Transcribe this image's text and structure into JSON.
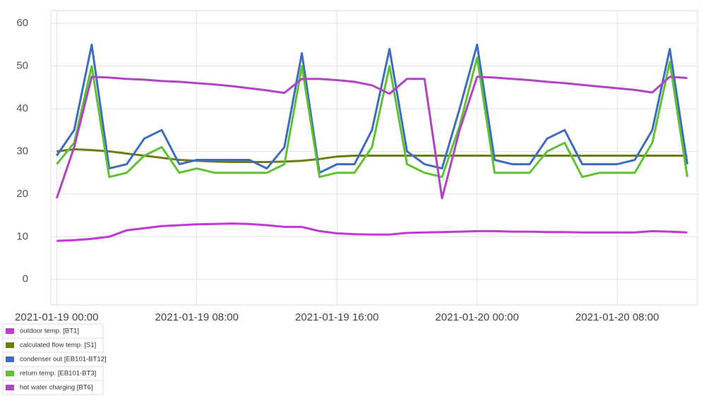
{
  "chart_data": {
    "type": "line",
    "x": [
      "2021-01-19 00:00",
      "2021-01-19 01:00",
      "2021-01-19 02:00",
      "2021-01-19 03:00",
      "2021-01-19 04:00",
      "2021-01-19 05:00",
      "2021-01-19 06:00",
      "2021-01-19 07:00",
      "2021-01-19 08:00",
      "2021-01-19 09:00",
      "2021-01-19 10:00",
      "2021-01-19 11:00",
      "2021-01-19 12:00",
      "2021-01-19 13:00",
      "2021-01-19 14:00",
      "2021-01-19 15:00",
      "2021-01-19 16:00",
      "2021-01-19 17:00",
      "2021-01-19 18:00",
      "2021-01-19 19:00",
      "2021-01-19 20:00",
      "2021-01-19 21:00",
      "2021-01-19 22:00",
      "2021-01-19 23:00",
      "2021-01-20 00:00",
      "2021-01-20 01:00",
      "2021-01-20 02:00",
      "2021-01-20 03:00",
      "2021-01-20 04:00",
      "2021-01-20 05:00",
      "2021-01-20 06:00",
      "2021-01-20 07:00",
      "2021-01-20 08:00",
      "2021-01-20 09:00",
      "2021-01-20 10:00",
      "2021-01-20 11:00",
      "2021-01-20 12:00"
    ],
    "series": [
      {
        "name": "outdoor temp. [BT1]",
        "color": "#c238d6",
        "values": [
          9,
          9.2,
          9.5,
          10,
          11.5,
          12,
          12.5,
          12.7,
          12.9,
          13,
          13.1,
          13,
          12.7,
          12.3,
          12.3,
          11.3,
          10.8,
          10.6,
          10.5,
          10.5,
          10.9,
          11,
          11.1,
          11.2,
          11.3,
          11.3,
          11.2,
          11.2,
          11.1,
          11.1,
          11,
          11,
          11,
          11,
          11.3,
          11.2,
          11
        ]
      },
      {
        "name": "calculated flow temp. [S1]",
        "color": "#6e7d12",
        "values": [
          30,
          30.5,
          30.3,
          30,
          29.5,
          29,
          28.5,
          28,
          27.8,
          27.6,
          27.5,
          27.5,
          27.5,
          27.6,
          27.8,
          28.2,
          28.8,
          29,
          29,
          29,
          29,
          29,
          29,
          29,
          29,
          29,
          29,
          29,
          29,
          29,
          29,
          29,
          29,
          29,
          29,
          29,
          29
        ]
      },
      {
        "name": "condenser out [EB101-BT12]",
        "color": "#3d6cc0",
        "values": [
          29,
          35,
          55,
          26,
          27,
          33,
          35,
          27,
          28,
          28,
          28,
          28,
          26,
          31,
          53,
          25,
          27,
          27,
          35,
          54,
          30,
          27,
          26,
          40,
          55,
          28,
          27,
          27,
          33,
          35,
          27,
          27,
          27,
          28,
          35,
          54,
          27
        ]
      },
      {
        "name": "return temp. [EB101-BT3]",
        "color": "#5ec232",
        "values": [
          27,
          32,
          50,
          24,
          25,
          29,
          31,
          25,
          26,
          25,
          25,
          25,
          25,
          27,
          50,
          24,
          25,
          25,
          31,
          50,
          27,
          25,
          24,
          36,
          52,
          25,
          25,
          25,
          30,
          32,
          24,
          25,
          25,
          25,
          32,
          51,
          24
        ]
      },
      {
        "name": "hot water charging [BT6]",
        "color": "#b143c4",
        "values": [
          19,
          31,
          47.5,
          47.3,
          47,
          46.8,
          46.5,
          46.3,
          46,
          45.7,
          45.3,
          44.8,
          44.3,
          43.7,
          47,
          47,
          46.7,
          46.3,
          45.5,
          43.5,
          47,
          47,
          19,
          35,
          47.5,
          47.3,
          47,
          46.7,
          46.3,
          46,
          45.6,
          45.2,
          44.8,
          44.4,
          43.8,
          47.5,
          47.2
        ]
      }
    ],
    "xlim": [
      "2021-01-18 23:40",
      "2021-01-20 12:35"
    ],
    "xticks": [
      "2021-01-19 00:00",
      "2021-01-19 08:00",
      "2021-01-19 16:00",
      "2021-01-20 00:00",
      "2021-01-20 08:00"
    ],
    "ylim": [
      -6,
      63
    ],
    "yticks": [
      0,
      10,
      20,
      30,
      40,
      50,
      60
    ],
    "grid": true
  }
}
